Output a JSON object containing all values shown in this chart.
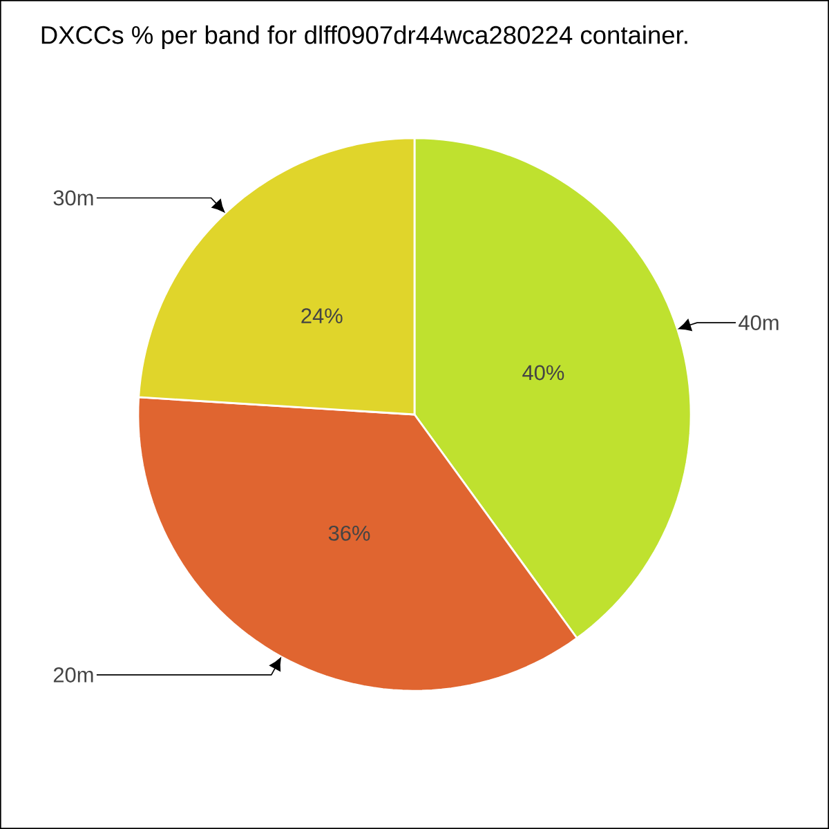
{
  "chart_data": {
    "type": "pie",
    "title": "DXCCs % per band for dlff0907dr44wca280224 container.",
    "categories": [
      "40m",
      "20m",
      "30m"
    ],
    "values": [
      40,
      36,
      24
    ],
    "colors": [
      "#bfe12f",
      "#e06530",
      "#e0d52b"
    ],
    "value_labels": [
      "40%",
      "36%",
      "24%"
    ]
  }
}
